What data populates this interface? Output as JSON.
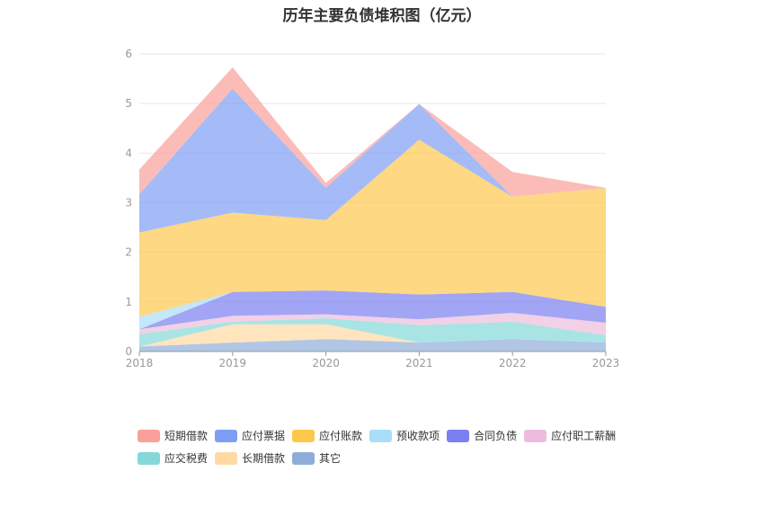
{
  "chart_data": {
    "type": "area",
    "stacked": true,
    "title": "历年主要负债堆积图（亿元）",
    "xlabel": "",
    "ylabel": "",
    "x": [
      "2018",
      "2019",
      "2020",
      "2021",
      "2022",
      "2023"
    ],
    "ylim": [
      0,
      6
    ],
    "yticks": [
      "0",
      "1",
      "2",
      "3",
      "4",
      "5",
      "6"
    ],
    "grid": true,
    "legend_position": "bottom",
    "series": [
      {
        "name": "其它",
        "color": "#8eaed9",
        "values": [
          0.1,
          0.18,
          0.25,
          0.18,
          0.25,
          0.18
        ]
      },
      {
        "name": "长期借款",
        "color": "#ffd9a3",
        "values": [
          0.0,
          0.37,
          0.3,
          0.0,
          0.0,
          0.0
        ]
      },
      {
        "name": "应交税费",
        "color": "#85d8d8",
        "values": [
          0.25,
          0.05,
          0.12,
          0.35,
          0.35,
          0.15
        ]
      },
      {
        "name": "应付职工薪酬",
        "color": "#edbcdc",
        "values": [
          0.1,
          0.12,
          0.08,
          0.12,
          0.18,
          0.25
        ]
      },
      {
        "name": "合同负债",
        "color": "#7b7ff0",
        "values": [
          0.0,
          0.48,
          0.48,
          0.5,
          0.42,
          0.32
        ]
      },
      {
        "name": "预收款项",
        "color": "#a8def8",
        "values": [
          0.25,
          0.0,
          0.0,
          0.0,
          0.0,
          0.0
        ]
      },
      {
        "name": "应付账款",
        "color": "#fec84d",
        "values": [
          1.7,
          1.6,
          1.42,
          3.12,
          1.92,
          2.4
        ]
      },
      {
        "name": "应付票据",
        "color": "#7d9ef5",
        "values": [
          0.77,
          2.5,
          0.65,
          0.72,
          0.0,
          0.0
        ]
      },
      {
        "name": "短期借款",
        "color": "#f9a09a",
        "values": [
          0.5,
          0.43,
          0.1,
          0.0,
          0.5,
          0.0
        ]
      }
    ],
    "legend": [
      "短期借款",
      "应付票据",
      "应付账款",
      "预收款项",
      "合同负债",
      "应付职工薪酬",
      "应交税费",
      "长期借款",
      "其它"
    ]
  }
}
